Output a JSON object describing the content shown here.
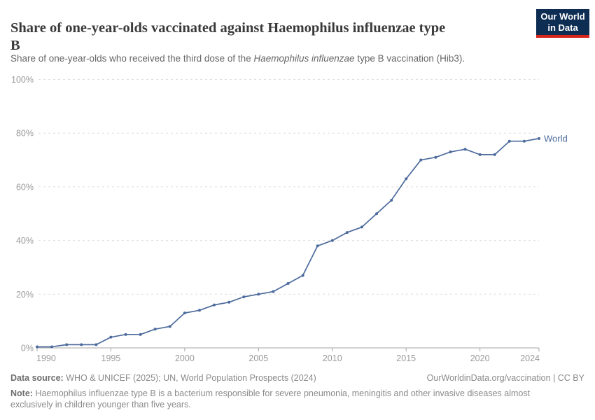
{
  "header": {
    "title_lines": [
      "Share of one-year-olds vaccinated against Haemophilus influenzae type",
      "B"
    ],
    "subtitle_prefix": "Share of one-year-olds who received the third dose of the ",
    "subtitle_italic": "Haemophilus influenzae",
    "subtitle_suffix": " type B vaccination (Hib3).",
    "logo_line1": "Our World",
    "logo_line2": "in Data",
    "logo_bg_color": "#0d2d52",
    "logo_bar_color": "#d7271d"
  },
  "chart_data": {
    "type": "line",
    "title": "Share of one-year-olds vaccinated against Haemophilus influenzae type B",
    "xlabel": "",
    "ylabel": "",
    "xlim": [
      1990,
      2024
    ],
    "ylim": [
      0,
      100
    ],
    "x_ticks": [
      1990,
      1995,
      2000,
      2005,
      2010,
      2015,
      2020,
      2024
    ],
    "y_ticks": [
      0,
      20,
      40,
      60,
      80,
      100
    ],
    "y_suffix": "%",
    "grid": "horizontal-dashed",
    "legend_position": "end-of-line",
    "series": [
      {
        "name": "World",
        "color": "#4C6A9C",
        "x": [
          1990,
          1991,
          1992,
          1993,
          1994,
          1995,
          1996,
          1997,
          1998,
          1999,
          2000,
          2001,
          2002,
          2003,
          2004,
          2005,
          2006,
          2007,
          2008,
          2009,
          2010,
          2011,
          2012,
          2013,
          2014,
          2015,
          2016,
          2017,
          2018,
          2019,
          2020,
          2021,
          2022,
          2023,
          2024
        ],
        "values": [
          0.4,
          0.4,
          1.2,
          1.2,
          1.2,
          4,
          5,
          5,
          7,
          8,
          13,
          14,
          16,
          17,
          19,
          20,
          21,
          24,
          27,
          38,
          40,
          43,
          45,
          50,
          55,
          63,
          70,
          71,
          73,
          74,
          72,
          72,
          77,
          77,
          78
        ]
      }
    ]
  },
  "footer": {
    "datasource_label": "Data source:",
    "datasource_text": "WHO & UNICEF (2025); UN, World Population Prospects (2024)",
    "license_text": "OurWorldinData.org/vaccination | CC BY",
    "note_label": "Note:",
    "note_text": "Haemophilus influenzae type B is a bacterium responsible for severe pneumonia, meningitis and other invasive diseases almost exclusively in children younger than five years."
  }
}
